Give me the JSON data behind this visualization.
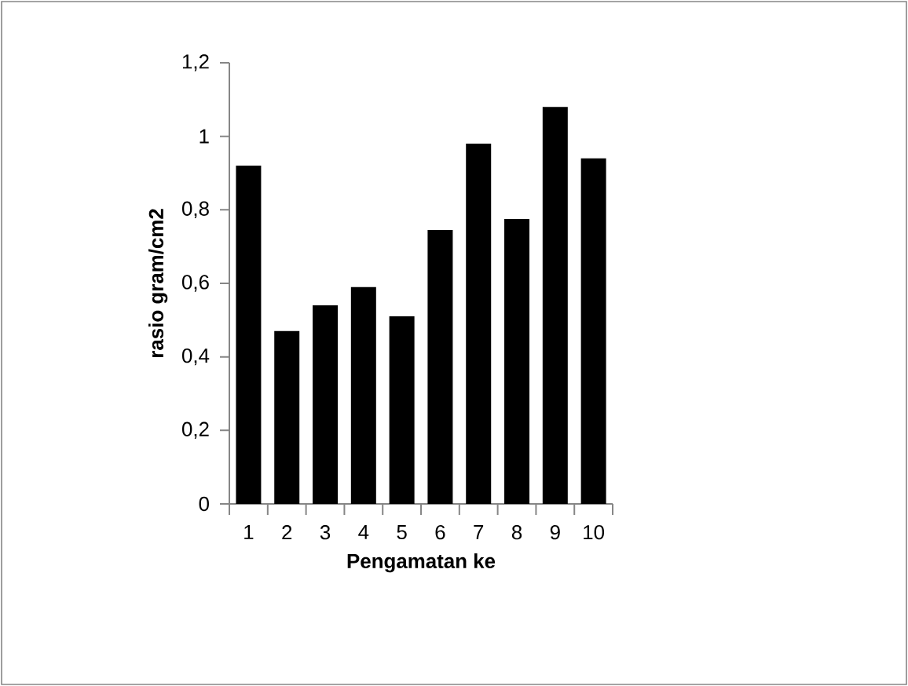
{
  "chart_data": {
    "type": "bar",
    "xlabel": "Pengamatan ke",
    "ylabel": "rasio gram/cm2",
    "categories": [
      "1",
      "2",
      "3",
      "4",
      "5",
      "6",
      "7",
      "8",
      "9",
      "10"
    ],
    "values": [
      0.92,
      0.47,
      0.54,
      0.59,
      0.51,
      0.745,
      0.98,
      0.775,
      1.08,
      0.94
    ],
    "color": "#000000",
    "ylim": [
      0,
      1.2
    ],
    "yticks": [
      0,
      {
        "value": 0.2,
        "label": "0,2"
      },
      {
        "value": 0.4,
        "label": "0,4"
      },
      {
        "value": 0.6,
        "label": "0,6"
      },
      {
        "value": 0.8,
        "label": "0,8"
      },
      1,
      {
        "value": 1.2,
        "label": "1,2"
      }
    ],
    "grid": false
  }
}
